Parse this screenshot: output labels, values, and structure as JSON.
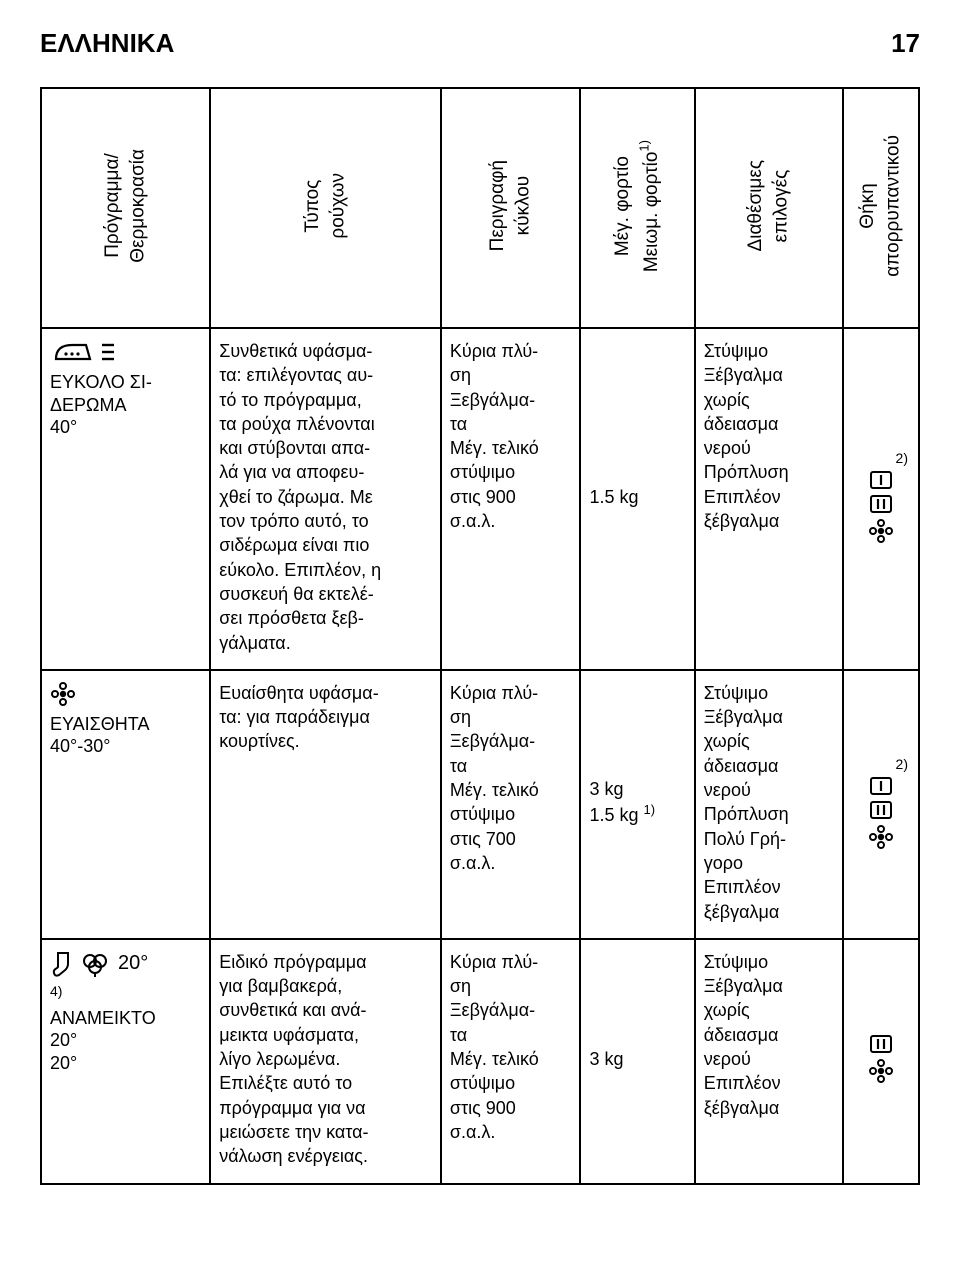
{
  "header": {
    "title": "ΕΛΛΗΝΙΚΑ",
    "page_number": "17"
  },
  "columns": [
    "Πρόγραμμα/\nΘερμοκρασία",
    "Τύπος\nρούχων",
    "Περιγραφή\nκύκλου",
    "Μέγ. φορτίο\nΜειωμ. φορτίο1)",
    "Διαθέσιμες\nεπιλογές",
    "Θήκη\nαπορρυπαντικού"
  ],
  "rows": [
    {
      "program": {
        "name_lines": [
          "ΕΥΚΟΛΟ ΣΙ-",
          "ΔΕΡΩΜΑ",
          "40°"
        ],
        "icons": [
          "iron",
          "steam"
        ]
      },
      "type": "Συνθετικά υφάσμα-\nτα: επιλέγοντας αυ-\nτό το πρόγραμμα,\nτα ρούχα πλένονται\nκαι στύβονται απα-\nλά για να αποφευ-\nχθεί το ζάρωμα. Με\nτον τρόπο αυτό, το\nσιδέρωμα είναι πιο\nεύκολο. Επιπλέον, η\nσυσκευή θα εκτελέ-\nσει πρόσθετα ξεβ-\nγάλματα.",
      "desc": "Κύρια πλύ-\nση\nΞεβγάλμα-\nτα\nΜέγ. τελικό\nστύψιμο\nστις 900\nσ.α.λ.",
      "load": "1.5 kg",
      "load_note": "",
      "opts": "Στύψιμο\nΞέβγαλμα\nχωρίς\nάδειασμα\nνερού\nΠρόπλυση\nΕπιπλέον\nξέβγαλμα",
      "det_note": "2)",
      "det_icons": [
        "comp1",
        "comp2",
        "flower"
      ]
    },
    {
      "program": {
        "name_lines": [
          "ΕΥΑΙΣΘΗΤΑ",
          "40°-30°"
        ],
        "icons": [
          "flower"
        ]
      },
      "type": "Ευαίσθητα υφάσμα-\nτα: για παράδειγμα\nκουρτίνες.",
      "desc": "Κύρια πλύ-\nση\nΞεβγάλμα-\nτα\nΜέγ. τελικό\nστύψιμο\nστις 700\nσ.α.λ.",
      "load": "3 kg",
      "load_note": "1.5 kg 1)",
      "opts": "Στύψιμο\nΞέβγαλμα\nχωρίς\nάδειασμα\nνερού\nΠρόπλυση\nΠολύ Γρή-\nγορο\nΕπιπλέον\nξέβγαλμα",
      "det_note": "2)",
      "det_icons": [
        "comp1",
        "comp2",
        "flower"
      ]
    },
    {
      "program": {
        "name_lines": [
          "ΑΝΑΜΕΙΚΤΟ",
          "20°",
          "20°"
        ],
        "pre_footnote": "4)",
        "top_row": {
          "icons": [
            "sock",
            "cotton"
          ],
          "text": "20°"
        }
      },
      "type": "Ειδικό πρόγραμμα\nγια βαμβακερά,\nσυνθετικά και ανά-\nμεικτα υφάσματα,\nλίγο λερωμένα.\nΕπιλέξτε αυτό το\nπρόγραμμα για να\nμειώσετε την κατα-\nνάλωση ενέργειας.",
      "desc": "Κύρια πλύ-\nση\nΞεβγάλμα-\nτα\nΜέγ. τελικό\nστύψιμο\nστις 900\nσ.α.λ.",
      "load": "3 kg",
      "load_note": "",
      "opts": "Στύψιμο\nΞέβγαλμα\nχωρίς\nάδειασμα\nνερού\nΕπιπλέον\nξέβγαλμα",
      "det_note": "",
      "det_icons": [
        "comp2",
        "flower"
      ]
    }
  ],
  "icon_svg": {
    "iron": "<svg width='44' height='26' viewBox='0 0 44 26'><path d='M6 20 Q6 6 22 6 L36 6 L40 20 Z' fill='none' stroke='#000' stroke-width='2.2'/><circle cx='16' cy='15' r='1.6'/><circle cx='22' cy='15' r='1.6'/><circle cx='28' cy='15' r='1.6'/></svg>",
    "steam": "<svg width='20' height='26' viewBox='0 0 20 26'><line x1='4' y1='6' x2='16' y2='6' stroke='#000' stroke-width='2.4'/><line x1='4' y1='13' x2='16' y2='13' stroke='#000' stroke-width='2.4'/><line x1='4' y1='20' x2='16' y2='20' stroke='#000' stroke-width='2.4'/></svg>",
    "flower": "<svg width='26' height='26' viewBox='0 0 26 26'><circle cx='13' cy='13' r='3.2' fill='#000'/><circle cx='13' cy='5' r='3' fill='none' stroke='#000' stroke-width='2'/><circle cx='13' cy='21' r='3' fill='none' stroke='#000' stroke-width='2'/><circle cx='5' cy='13' r='3' fill='none' stroke='#000' stroke-width='2'/><circle cx='21' cy='13' r='3' fill='none' stroke='#000' stroke-width='2'/></svg>",
    "sock": "<svg width='26' height='28' viewBox='0 0 26 28'><path d='M8 3 L18 3 L18 14 Q18 18 14 21 L9 25 Q5 27 4 23 Q3 20 7 18 L8 17 Z' fill='none' stroke='#000' stroke-width='2'/></svg>",
    "cotton": "<svg width='30' height='28' viewBox='0 0 30 28'><circle cx='10' cy='11' r='6' fill='none' stroke='#000' stroke-width='2'/><circle cx='20' cy='11' r='6' fill='none' stroke='#000' stroke-width='2'/><circle cx='15' cy='17' r='6' fill='none' stroke='#000' stroke-width='2'/><line x1='15' y1='23' x2='15' y2='27' stroke='#000' stroke-width='2'/></svg>",
    "comp1": "<svg width='24' height='20' viewBox='0 0 24 20'><rect x='2' y='2' width='20' height='16' rx='2' fill='none' stroke='#000' stroke-width='2'/><line x1='12' y1='5' x2='12' y2='15' stroke='#000' stroke-width='2.2'/></svg>",
    "comp2": "<svg width='24' height='20' viewBox='0 0 24 20'><rect x='2' y='2' width='20' height='16' rx='2' fill='none' stroke='#000' stroke-width='2'/><line x1='9' y1='5' x2='9' y2='15' stroke='#000' stroke-width='2.2'/><line x1='15' y1='5' x2='15' y2='15' stroke='#000' stroke-width='2.2'/></svg>"
  }
}
